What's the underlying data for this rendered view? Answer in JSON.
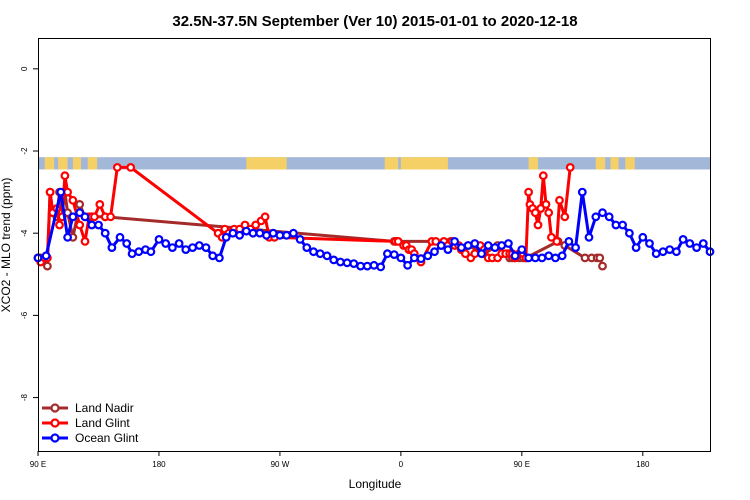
{
  "chart_data": {
    "type": "line",
    "title": "32.5N-37.5N September (Ver 10)   2015-01-01 to 2020-12-18",
    "xlabel": "Longitude",
    "ylabel": "XCO2 - MLO trend (ppm)",
    "xlim": [
      90,
      590
    ],
    "ylim": [
      -9.3,
      0.75
    ],
    "x_ticks": [
      {
        "value": 90,
        "label": "90 E"
      },
      {
        "value": 180,
        "label": "180"
      },
      {
        "value": 270,
        "label": "90 W"
      },
      {
        "value": 360,
        "label": "0"
      },
      {
        "value": 450,
        "label": "90 E"
      },
      {
        "value": 540,
        "label": "180"
      }
    ],
    "y_ticks": [
      {
        "value": 0,
        "label": "0"
      },
      {
        "value": -2,
        "label": "-2"
      },
      {
        "value": -4,
        "label": "-4"
      },
      {
        "value": -6,
        "label": "-6"
      },
      {
        "value": -8,
        "label": "-8"
      }
    ],
    "band": {
      "y_top": -2.15,
      "y_bottom": -2.45,
      "ocean_color": "#a3b8d9",
      "land_color": "#f5d067",
      "land_spans": [
        [
          95,
          102
        ],
        [
          105,
          112
        ],
        [
          116,
          122
        ],
        [
          127,
          134
        ],
        [
          245,
          275
        ],
        [
          348,
          358
        ],
        [
          360,
          395
        ],
        [
          455,
          462
        ],
        [
          505,
          512
        ],
        [
          516,
          522
        ],
        [
          527,
          534
        ]
      ]
    },
    "series": [
      {
        "name": "Land Nadir",
        "color": "#a52a2a",
        "x": [
          90,
          92,
          95,
          97,
          99,
          101,
          104,
          106,
          108,
          110,
          112,
          116,
          121,
          125,
          128,
          130,
          140,
          355,
          357,
          397,
          405,
          410,
          422,
          432,
          435,
          440,
          441,
          443,
          445,
          448,
          451,
          453,
          477,
          482,
          497,
          502,
          506,
          508,
          510
        ],
        "y": [
          -4.6,
          -4.6,
          -4.6,
          -4.8,
          -3.0,
          -3.5,
          -3.6,
          -3.0,
          -3.5,
          -3.0,
          -3.5,
          -4.1,
          -3.3,
          -3.6,
          -3.6,
          -3.6,
          -3.6,
          -4.2,
          -4.2,
          -4.2,
          -4.4,
          -4.3,
          -4.5,
          -4.3,
          -4.5,
          -4.5,
          -4.6,
          -4.6,
          -4.6,
          -4.6,
          -4.6,
          -4.6,
          -4.2,
          -4.3,
          -4.6,
          -4.6,
          -4.6,
          -4.6,
          -4.8
        ]
      },
      {
        "name": "Land Glint",
        "color": "#ff0000",
        "x": [
          90,
          92,
          95,
          97,
          99,
          101,
          104,
          106,
          108,
          110,
          112,
          116,
          121,
          125,
          128,
          130,
          132,
          136,
          140,
          144,
          149,
          159,
          224,
          227,
          229,
          232,
          236,
          240,
          244,
          248,
          252,
          256,
          259,
          262,
          266,
          356,
          358,
          362,
          364,
          366,
          368,
          370,
          375,
          383,
          386,
          390,
          392,
          395,
          398,
          400,
          403,
          405,
          408,
          412,
          415,
          419,
          422,
          425,
          428,
          432,
          435,
          438,
          441,
          443,
          445,
          448,
          451,
          453,
          455,
          456,
          458,
          460,
          462,
          464,
          466,
          468,
          470,
          472,
          476,
          478,
          482,
          486
        ],
        "y": [
          -4.6,
          -4.7,
          -4.6,
          -4.6,
          -3.0,
          -3.5,
          -3.4,
          -3.8,
          -3.6,
          -2.6,
          -3.0,
          -3.2,
          -3.8,
          -4.2,
          -3.6,
          -3.6,
          -3.6,
          -3.3,
          -3.6,
          -3.6,
          -2.4,
          -2.4,
          -4.0,
          -4.1,
          -3.9,
          -4.0,
          -3.9,
          -3.9,
          -3.8,
          -3.9,
          -3.8,
          -3.7,
          -3.6,
          -4.1,
          -4.1,
          -4.2,
          -4.2,
          -4.3,
          -4.3,
          -4.4,
          -4.4,
          -4.5,
          -4.7,
          -4.2,
          -4.2,
          -4.3,
          -4.2,
          -4.3,
          -4.2,
          -4.3,
          -4.3,
          -4.4,
          -4.5,
          -4.6,
          -4.5,
          -4.3,
          -4.4,
          -4.6,
          -4.6,
          -4.6,
          -4.5,
          -4.5,
          -4.5,
          -4.5,
          -4.6,
          -4.5,
          -4.5,
          -4.6,
          -3.0,
          -3.3,
          -3.4,
          -3.5,
          -3.8,
          -3.4,
          -2.6,
          -3.3,
          -3.5,
          -4.1,
          -4.2,
          -3.2,
          -3.6,
          -2.4
        ]
      },
      {
        "name": "Ocean Glint",
        "color": "#0000ff",
        "x": [
          90,
          96,
          107,
          112,
          116,
          121,
          125,
          130,
          135,
          140,
          145,
          151,
          156,
          160,
          165,
          170,
          174,
          180,
          185,
          190,
          195,
          200,
          205,
          210,
          215,
          220,
          225,
          230,
          235,
          240,
          245,
          250,
          255,
          260,
          265,
          270,
          275,
          280,
          285,
          290,
          295,
          300,
          305,
          310,
          315,
          320,
          325,
          330,
          335,
          340,
          345,
          350,
          355,
          360,
          365,
          370,
          375,
          380,
          385,
          390,
          395,
          400,
          405,
          410,
          415,
          420,
          425,
          430,
          435,
          440,
          445,
          450,
          455,
          460,
          465,
          470,
          475,
          480,
          485,
          490,
          495,
          500,
          505,
          510,
          515,
          520,
          525,
          530,
          535,
          540,
          545,
          550,
          555,
          560,
          565,
          570,
          575,
          580,
          585,
          590
        ],
        "y": [
          -4.6,
          -4.55,
          -3.0,
          -4.1,
          -3.6,
          -3.5,
          -3.6,
          -3.8,
          -3.8,
          -4.0,
          -4.35,
          -4.1,
          -4.25,
          -4.5,
          -4.45,
          -4.4,
          -4.45,
          -4.15,
          -4.25,
          -4.35,
          -4.25,
          -4.4,
          -4.35,
          -4.3,
          -4.35,
          -4.55,
          -4.6,
          -4.1,
          -4.0,
          -4.05,
          -3.95,
          -4.0,
          -4.0,
          -4.05,
          -4.0,
          -4.05,
          -4.05,
          -4.0,
          -4.15,
          -4.35,
          -4.45,
          -4.5,
          -4.55,
          -4.65,
          -4.7,
          -4.72,
          -4.74,
          -4.8,
          -4.8,
          -4.78,
          -4.82,
          -4.5,
          -4.52,
          -4.6,
          -4.78,
          -4.6,
          -4.62,
          -4.55,
          -4.45,
          -4.3,
          -4.4,
          -4.2,
          -4.35,
          -4.3,
          -4.25,
          -4.5,
          -4.3,
          -4.35,
          -4.3,
          -4.25,
          -4.55,
          -4.4,
          -4.6,
          -4.6,
          -4.6,
          -4.55,
          -4.6,
          -4.55,
          -4.2,
          -4.35,
          -3.0,
          -4.1,
          -3.6,
          -3.5,
          -3.6,
          -3.8,
          -3.8,
          -4.0,
          -4.35,
          -4.1,
          -4.25,
          -4.5,
          -4.45,
          -4.4,
          -4.45,
          -4.15,
          -4.25,
          -4.35,
          -4.25,
          -4.45
        ]
      }
    ],
    "legend": {
      "position": "bottom-left"
    }
  }
}
